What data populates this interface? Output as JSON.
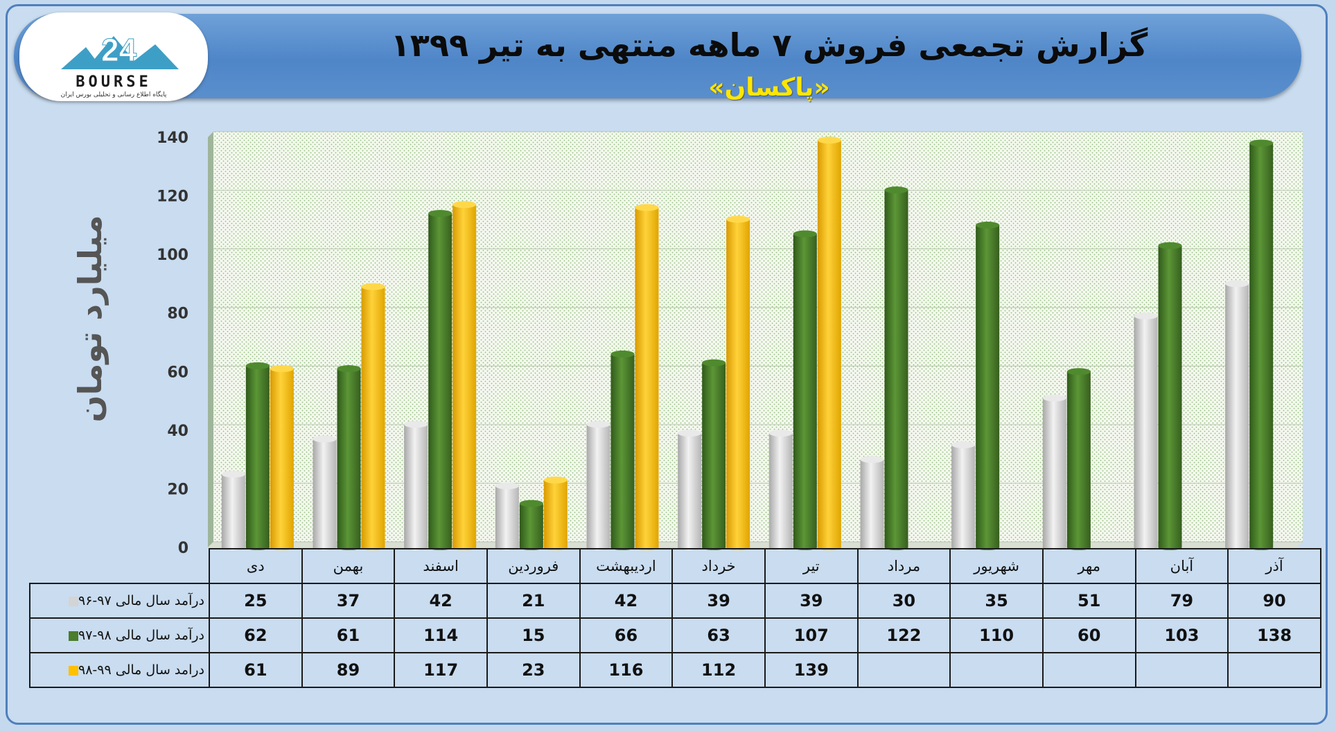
{
  "header": {
    "title": "گزارش تجمعی فروش ۷ ماهه منتهی به تیر ۱۳۹۹",
    "subtitle": "«پاکسان»"
  },
  "logo": {
    "text": "BOURSE",
    "subtext": "پایگاه اطلاع رسانی و تحلیلی بورس ایران"
  },
  "chart_data": {
    "type": "bar",
    "ylabel": "میلیارد تومان",
    "ylim": [
      0,
      140
    ],
    "yticks": [
      0,
      20,
      40,
      60,
      80,
      100,
      120,
      140
    ],
    "grid": true,
    "categories": [
      "دی",
      "بهمن",
      "اسفند",
      "فروردین",
      "اردیبهشت",
      "خرداد",
      "تیر",
      "مرداد",
      "شهریور",
      "مهر",
      "آبان",
      "آذر"
    ],
    "series": [
      {
        "name": "درآمد سال مالی ۹۷-۹۶",
        "color": "#d4d4d4",
        "values": [
          25,
          37,
          42,
          21,
          42,
          39,
          39,
          30,
          35,
          51,
          79,
          90
        ]
      },
      {
        "name": "درآمد سال مالی ۹۸-۹۷",
        "color": "#4a7d2c",
        "values": [
          62,
          61,
          114,
          15,
          66,
          63,
          107,
          122,
          110,
          60,
          103,
          138
        ]
      },
      {
        "name": "درامد سال مالی ۹۹-۹۸",
        "color": "#ffc000",
        "values": [
          61,
          89,
          117,
          23,
          116,
          112,
          139,
          null,
          null,
          null,
          null,
          null
        ]
      }
    ]
  }
}
